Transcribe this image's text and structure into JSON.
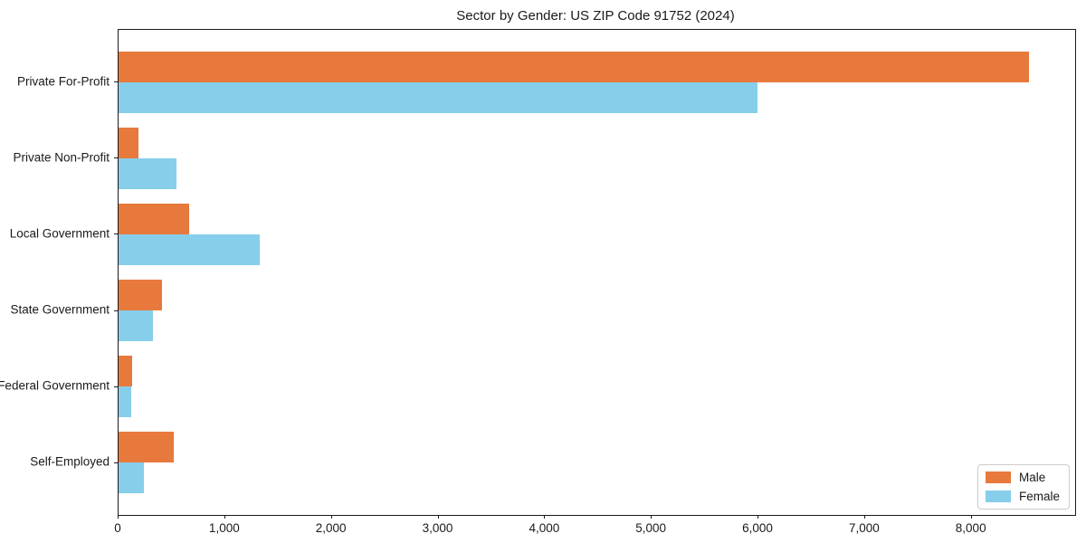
{
  "title": "Sector by Gender: US ZIP Code 91752 (2024)",
  "chart_data": {
    "type": "bar",
    "orientation": "horizontal",
    "title": "Sector by Gender: US ZIP Code 91752 (2024)",
    "xlabel": "",
    "ylabel": "",
    "categories": [
      "Private For-Profit",
      "Private Non-Profit",
      "Local Government",
      "State Government",
      "Federal Government",
      "Self-Employed"
    ],
    "series": [
      {
        "name": "Male",
        "color": "#E8793D",
        "values": [
          8540,
          190,
          660,
          410,
          130,
          520
        ]
      },
      {
        "name": "Female",
        "color": "#87CEEB",
        "values": [
          5990,
          540,
          1320,
          325,
          115,
          240
        ]
      }
    ],
    "xlim": [
      0,
      8970
    ],
    "x_ticks": [
      {
        "value": 0,
        "label": "0"
      },
      {
        "value": 1000,
        "label": "1,000"
      },
      {
        "value": 2000,
        "label": "2,000"
      },
      {
        "value": 3000,
        "label": "3,000"
      },
      {
        "value": 4000,
        "label": "4,000"
      },
      {
        "value": 5000,
        "label": "5,000"
      },
      {
        "value": 6000,
        "label": "6,000"
      },
      {
        "value": 7000,
        "label": "7,000"
      },
      {
        "value": 8000,
        "label": "8,000"
      }
    ],
    "grid": false,
    "legend_position": "lower right"
  }
}
